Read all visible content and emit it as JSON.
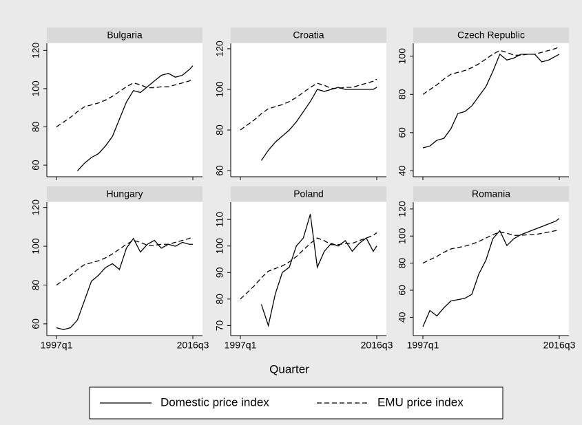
{
  "chart_data": {
    "type": "line",
    "xlabel": "Quarter",
    "x": [
      "1997q1",
      "1998q1",
      "1999q1",
      "2000q1",
      "2001q1",
      "2002q1",
      "2003q1",
      "2004q1",
      "2005q1",
      "2006q1",
      "2007q1",
      "2008q1",
      "2009q1",
      "2010q1",
      "2011q1",
      "2012q1",
      "2013q1",
      "2014q1",
      "2015q1",
      "2016q1",
      "2016q3"
    ],
    "xticks": [
      "1997q1",
      "2016q3"
    ],
    "series": [
      {
        "name": "Domestic price index",
        "color": "#000000",
        "dashed": false
      },
      {
        "name": "EMU price index",
        "color": "#000000",
        "dashed": true
      }
    ],
    "panels": [
      {
        "title": "Bulgaria",
        "ylim": [
          55,
          123
        ],
        "yticks": [
          60,
          80,
          100,
          120
        ],
        "values": [
          [
            null,
            null,
            null,
            57,
            61,
            64,
            66,
            70,
            75,
            84,
            93,
            99,
            98,
            101,
            104,
            107,
            108,
            106,
            107,
            110,
            112
          ],
          [
            80,
            82.5,
            85,
            88,
            90.5,
            91.5,
            92.5,
            94,
            96,
            98.5,
            101,
            103,
            102,
            100.5,
            100.5,
            101,
            101,
            102,
            103,
            104,
            105
          ]
        ]
      },
      {
        "title": "Croatia",
        "ylim": [
          58,
          122
        ],
        "yticks": [
          60,
          80,
          100,
          120
        ],
        "values": [
          [
            null,
            null,
            null,
            65,
            70,
            74,
            77,
            80,
            84,
            89,
            94,
            100,
            99,
            100,
            101,
            100,
            100,
            100,
            100,
            100,
            101
          ],
          [
            80,
            82.5,
            85,
            88,
            90.5,
            91.5,
            92.5,
            94,
            96,
            98.5,
            101,
            103,
            102,
            100.5,
            100.5,
            101,
            101,
            102,
            103,
            104,
            105
          ]
        ]
      },
      {
        "title": "Czech Republic",
        "ylim": [
          38,
          106
        ],
        "yticks": [
          40,
          60,
          80,
          100
        ],
        "values": [
          [
            52,
            53,
            56,
            57,
            62,
            70,
            71,
            74,
            79,
            84,
            92,
            101,
            98,
            99,
            101,
            101,
            101,
            97,
            98,
            100,
            101
          ],
          [
            80,
            82.5,
            85,
            88,
            90.5,
            91.5,
            92.5,
            94,
            96,
            98.5,
            101,
            103,
            102,
            100.5,
            100.5,
            101,
            101,
            102,
            103,
            104,
            105
          ]
        ]
      },
      {
        "title": "Hungary",
        "ylim": [
          55,
          122
        ],
        "yticks": [
          60,
          80,
          100,
          120
        ],
        "values": [
          [
            58,
            57,
            58,
            62,
            72,
            82,
            85,
            89,
            91,
            88,
            99,
            104,
            97,
            101,
            103,
            99,
            101,
            100,
            102,
            101,
            101
          ],
          [
            80,
            82.5,
            85,
            88,
            90.5,
            91.5,
            92.5,
            94,
            96,
            98.5,
            101,
            103,
            102,
            100.5,
            100.5,
            101,
            101,
            102,
            103,
            104,
            105
          ]
        ]
      },
      {
        "title": "Poland",
        "ylim": [
          67,
          116
        ],
        "yticks": [
          70,
          80,
          90,
          100,
          110
        ],
        "values": [
          [
            null,
            null,
            null,
            78,
            70,
            82,
            90,
            92,
            100,
            103,
            112,
            92,
            98,
            101,
            100,
            102,
            98,
            101,
            103,
            98,
            100
          ],
          [
            80,
            82.5,
            85,
            88,
            90.5,
            91.5,
            92.5,
            94,
            96,
            98.5,
            101,
            103,
            102,
            100.5,
            100.5,
            101,
            101,
            102,
            103,
            104,
            105
          ]
        ]
      },
      {
        "title": "Romania",
        "ylim": [
          28,
          124
        ],
        "yticks": [
          40,
          60,
          80,
          100,
          120
        ],
        "values": [
          [
            33,
            45,
            41,
            47,
            52,
            53,
            54,
            57,
            72,
            82,
            98,
            104,
            93,
            98,
            101,
            103,
            105,
            107,
            109,
            111,
            113
          ],
          [
            80,
            82.5,
            85,
            88,
            90.5,
            91.5,
            92.5,
            94,
            96,
            98.5,
            101,
            103,
            102,
            100.5,
            100.5,
            101,
            101,
            102,
            103,
            104,
            105
          ]
        ]
      }
    ]
  }
}
